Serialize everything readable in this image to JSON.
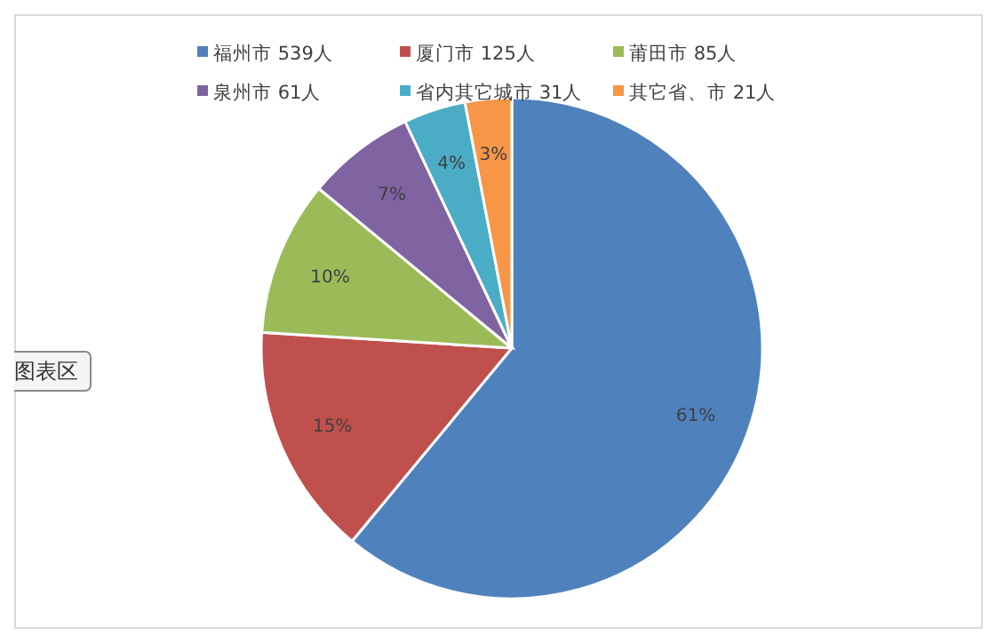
{
  "chart_data": {
    "type": "pie",
    "categories": [
      "福州市 539人",
      "厦门市 125人",
      "莆田市 85人",
      "泉州市 61人",
      "省内其它城市 31人",
      "其它省、市 21人"
    ],
    "values": [
      61,
      15,
      10,
      7,
      4,
      3
    ],
    "colors": [
      "#4f81bd",
      "#c0504d",
      "#9bbb59",
      "#8064a2",
      "#4bacc6",
      "#f79646"
    ],
    "value_labels": [
      "61%",
      "15%",
      "10%",
      "7%",
      "4%",
      "3%"
    ],
    "legend": "top",
    "annotations": [
      "图表区"
    ]
  }
}
